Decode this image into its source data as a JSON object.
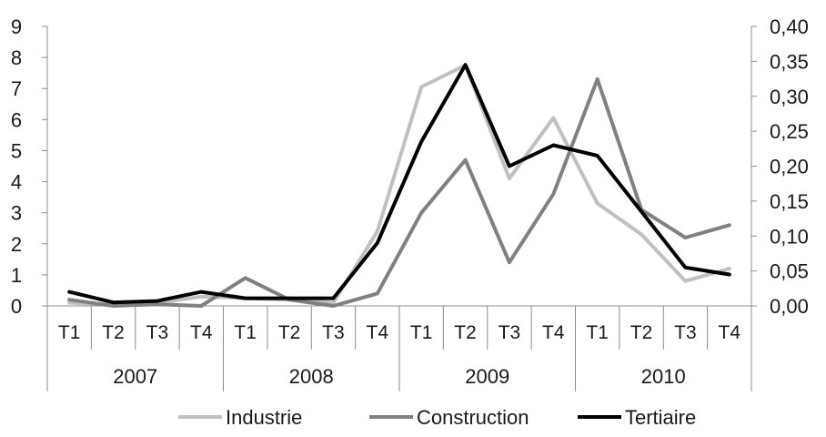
{
  "chart_data": {
    "type": "line",
    "categories": [
      "T1",
      "T2",
      "T3",
      "T4",
      "T1",
      "T2",
      "T3",
      "T4",
      "T1",
      "T2",
      "T3",
      "T4",
      "T1",
      "T2",
      "T3",
      "T4"
    ],
    "groups": [
      {
        "label": "2007",
        "count": 4
      },
      {
        "label": "2008",
        "count": 4
      },
      {
        "label": "2009",
        "count": 4
      },
      {
        "label": "2010",
        "count": 4
      }
    ],
    "series": [
      {
        "name": "Industrie",
        "axis": "left",
        "color": "#c0c0c0",
        "values": [
          0.1,
          0.05,
          0.1,
          0.3,
          0.25,
          0.2,
          0.1,
          2.4,
          7.05,
          7.75,
          4.1,
          6.05,
          3.3,
          2.3,
          0.8,
          1.2
        ]
      },
      {
        "name": "Construction",
        "axis": "left",
        "color": "#808080",
        "values": [
          0.2,
          0.0,
          0.05,
          0.0,
          0.9,
          0.2,
          0.0,
          0.4,
          3.0,
          4.7,
          1.4,
          3.6,
          7.3,
          3.1,
          2.2,
          2.6
        ]
      },
      {
        "name": "Tertiaire",
        "axis": "right",
        "color": "#000000",
        "values": [
          0.02,
          0.005,
          0.007,
          0.02,
          0.011,
          0.011,
          0.011,
          0.09,
          0.235,
          0.345,
          0.2,
          0.23,
          0.215,
          0.135,
          0.055,
          0.045
        ]
      }
    ],
    "y_left": {
      "min": 0,
      "max": 9,
      "ticks": [
        "0",
        "1",
        "2",
        "3",
        "4",
        "5",
        "6",
        "7",
        "8",
        "9"
      ]
    },
    "y_right": {
      "min": 0,
      "max": 0.4,
      "ticks": [
        "0,00",
        "0,05",
        "0,10",
        "0,15",
        "0,20",
        "0,25",
        "0,30",
        "0,35",
        "0,40"
      ]
    },
    "legend_position": "bottom",
    "grid": false
  }
}
